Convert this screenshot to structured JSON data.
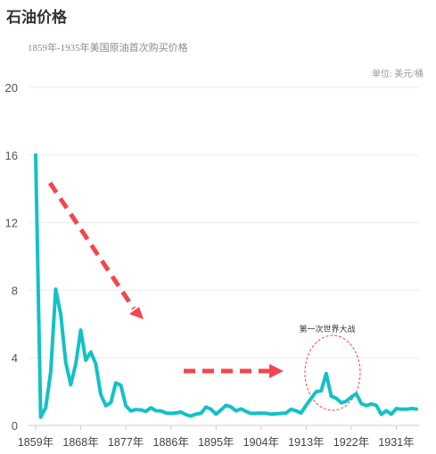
{
  "chart_data": {
    "type": "line",
    "title": "石油价格",
    "subtitle": "1859年-1935年美国原油首次购买价格",
    "unit_label": "单位: 美元/桶",
    "ylim": [
      0,
      20
    ],
    "yticks": [
      "0",
      "4",
      "8",
      "12",
      "16",
      "20"
    ],
    "xlim": [
      1859,
      1935
    ],
    "xticks": [
      {
        "year": 1859,
        "label": "1859年"
      },
      {
        "year": 1868,
        "label": "1868年"
      },
      {
        "year": 1877,
        "label": "1877年"
      },
      {
        "year": 1886,
        "label": "1886年"
      },
      {
        "year": 1895,
        "label": "1895年"
      },
      {
        "year": 1904,
        "label": "1904年"
      },
      {
        "year": 1913,
        "label": "1913年"
      },
      {
        "year": 1922,
        "label": "1922年"
      },
      {
        "year": 1931,
        "label": "1931年"
      }
    ],
    "grid": true,
    "line_color": "#14c1c6",
    "arrow_color": "#f4454f",
    "annotation": "第一次世界大战",
    "x": [
      1859,
      1860,
      1861,
      1862,
      1863,
      1864,
      1865,
      1866,
      1867,
      1868,
      1869,
      1870,
      1871,
      1872,
      1873,
      1874,
      1875,
      1876,
      1877,
      1878,
      1879,
      1880,
      1881,
      1882,
      1883,
      1884,
      1885,
      1886,
      1887,
      1888,
      1889,
      1890,
      1891,
      1892,
      1893,
      1894,
      1895,
      1896,
      1897,
      1898,
      1899,
      1900,
      1901,
      1902,
      1903,
      1904,
      1905,
      1906,
      1907,
      1908,
      1909,
      1910,
      1911,
      1912,
      1913,
      1914,
      1915,
      1916,
      1917,
      1918,
      1919,
      1920,
      1921,
      1922,
      1923,
      1924,
      1925,
      1926,
      1927,
      1928,
      1929,
      1930,
      1931,
      1932,
      1933,
      1934,
      1935
    ],
    "y": [
      16.0,
      0.49,
      1.05,
      3.15,
      8.06,
      6.59,
      3.74,
      2.41,
      3.63,
      5.64,
      3.86,
      4.34,
      3.64,
      1.83,
      1.17,
      1.35,
      2.52,
      2.38,
      1.17,
      0.86,
      0.94,
      0.92,
      0.83,
      1.05,
      0.87,
      0.86,
      0.74,
      0.71,
      0.74,
      0.79,
      0.64,
      0.56,
      0.67,
      0.72,
      1.09,
      0.96,
      0.67,
      0.92,
      1.19,
      1.1,
      0.86,
      0.98,
      0.83,
      0.71,
      0.72,
      0.73,
      0.72,
      0.67,
      0.69,
      0.71,
      0.74,
      0.96,
      0.86,
      0.74,
      1.2,
      1.6,
      2.0,
      2.05,
      3.07,
      1.73,
      1.61,
      1.34,
      1.43,
      1.68,
      1.88,
      1.3,
      1.17,
      1.27,
      1.19,
      0.65,
      0.87,
      0.67,
      1.0,
      0.96,
      0.96,
      1.0,
      0.97
    ]
  }
}
